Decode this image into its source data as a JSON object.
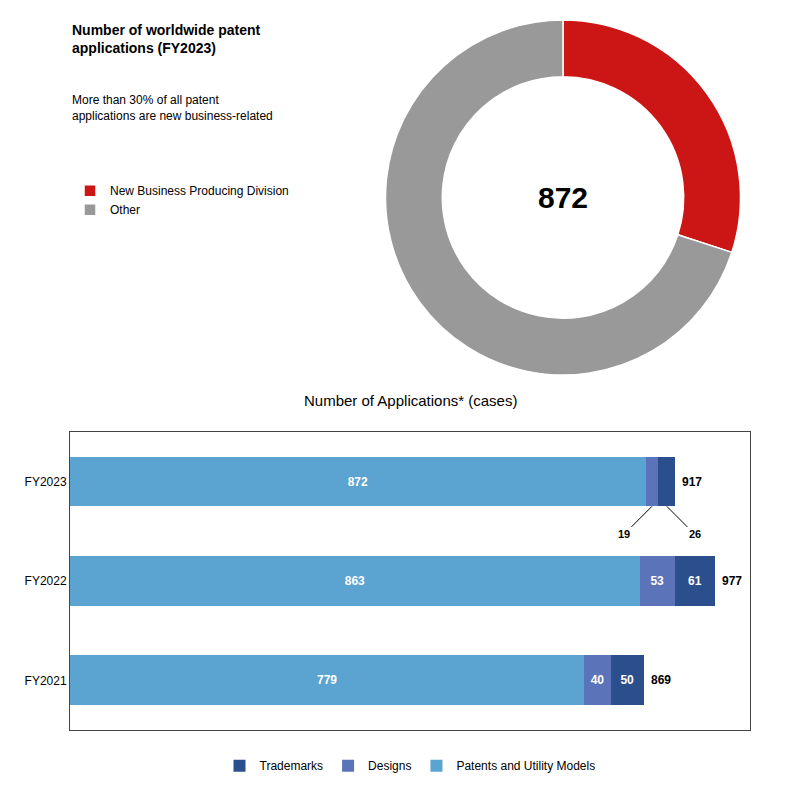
{
  "chart_data": [
    {
      "type": "pie",
      "title": "Number of worldwide patent\napplications (FY2023)",
      "subtitle": "More than 30% of all patent\napplications are new business-related",
      "categories": [
        "New Business Producing Division",
        "Other"
      ],
      "values": [
        30,
        70
      ],
      "colors": [
        "#cc1515",
        "#999999"
      ],
      "annotations": [
        "872"
      ],
      "legend": "left"
    },
    {
      "type": "bar",
      "orientation": "horizontal",
      "stacked": true,
      "title": "Number of Applications* (cases)",
      "categories": [
        "FY2023",
        "FY2022",
        "FY2021"
      ],
      "series": [
        {
          "name": "Patents and Utility Models",
          "color": "#5BA3D0",
          "values": [
            872,
            863,
            779
          ]
        },
        {
          "name": "Designs",
          "color": "#5B73B8",
          "values": [
            19,
            53,
            40
          ]
        },
        {
          "name": "Trademarks",
          "color": "#2B4E8C",
          "values": [
            26,
            61,
            50
          ]
        }
      ],
      "totals": [
        917,
        977,
        869
      ],
      "xlim": [
        0,
        1030
      ],
      "grid": false,
      "tick_labels": "y",
      "data_labels": true,
      "legend": "bottom"
    }
  ]
}
